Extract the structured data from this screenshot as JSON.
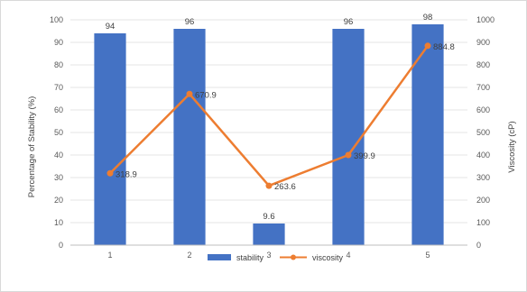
{
  "chart_data": {
    "type": "bar",
    "categories": [
      "1",
      "2",
      "3",
      "4",
      "5"
    ],
    "series": [
      {
        "name": "stability",
        "type": "bar",
        "axis": "left",
        "values": [
          94,
          96,
          9.6,
          96,
          98
        ],
        "labels": [
          "94",
          "96",
          "9.6",
          "96",
          "98"
        ],
        "color": "#4472C4"
      },
      {
        "name": "viscosity",
        "type": "line",
        "axis": "right",
        "values": [
          318.9,
          670.9,
          263.6,
          399.9,
          884.8
        ],
        "labels": [
          "318.9",
          "670.9",
          "263.6",
          "399.9",
          "884.8"
        ],
        "color": "#ED7D31"
      }
    ],
    "y_left": {
      "label": "Percentage of Stability (%)",
      "range": [
        0,
        100
      ],
      "ticks": [
        "0",
        "10",
        "20",
        "30",
        "40",
        "50",
        "60",
        "70",
        "80",
        "90",
        "100"
      ]
    },
    "y_right": {
      "label": "Viscosity (cP)",
      "range": [
        0,
        1000
      ],
      "ticks": [
        "0",
        "100",
        "200",
        "300",
        "400",
        "500",
        "600",
        "700",
        "800",
        "900",
        "1000"
      ]
    },
    "grid": true,
    "legend": "bottom"
  }
}
